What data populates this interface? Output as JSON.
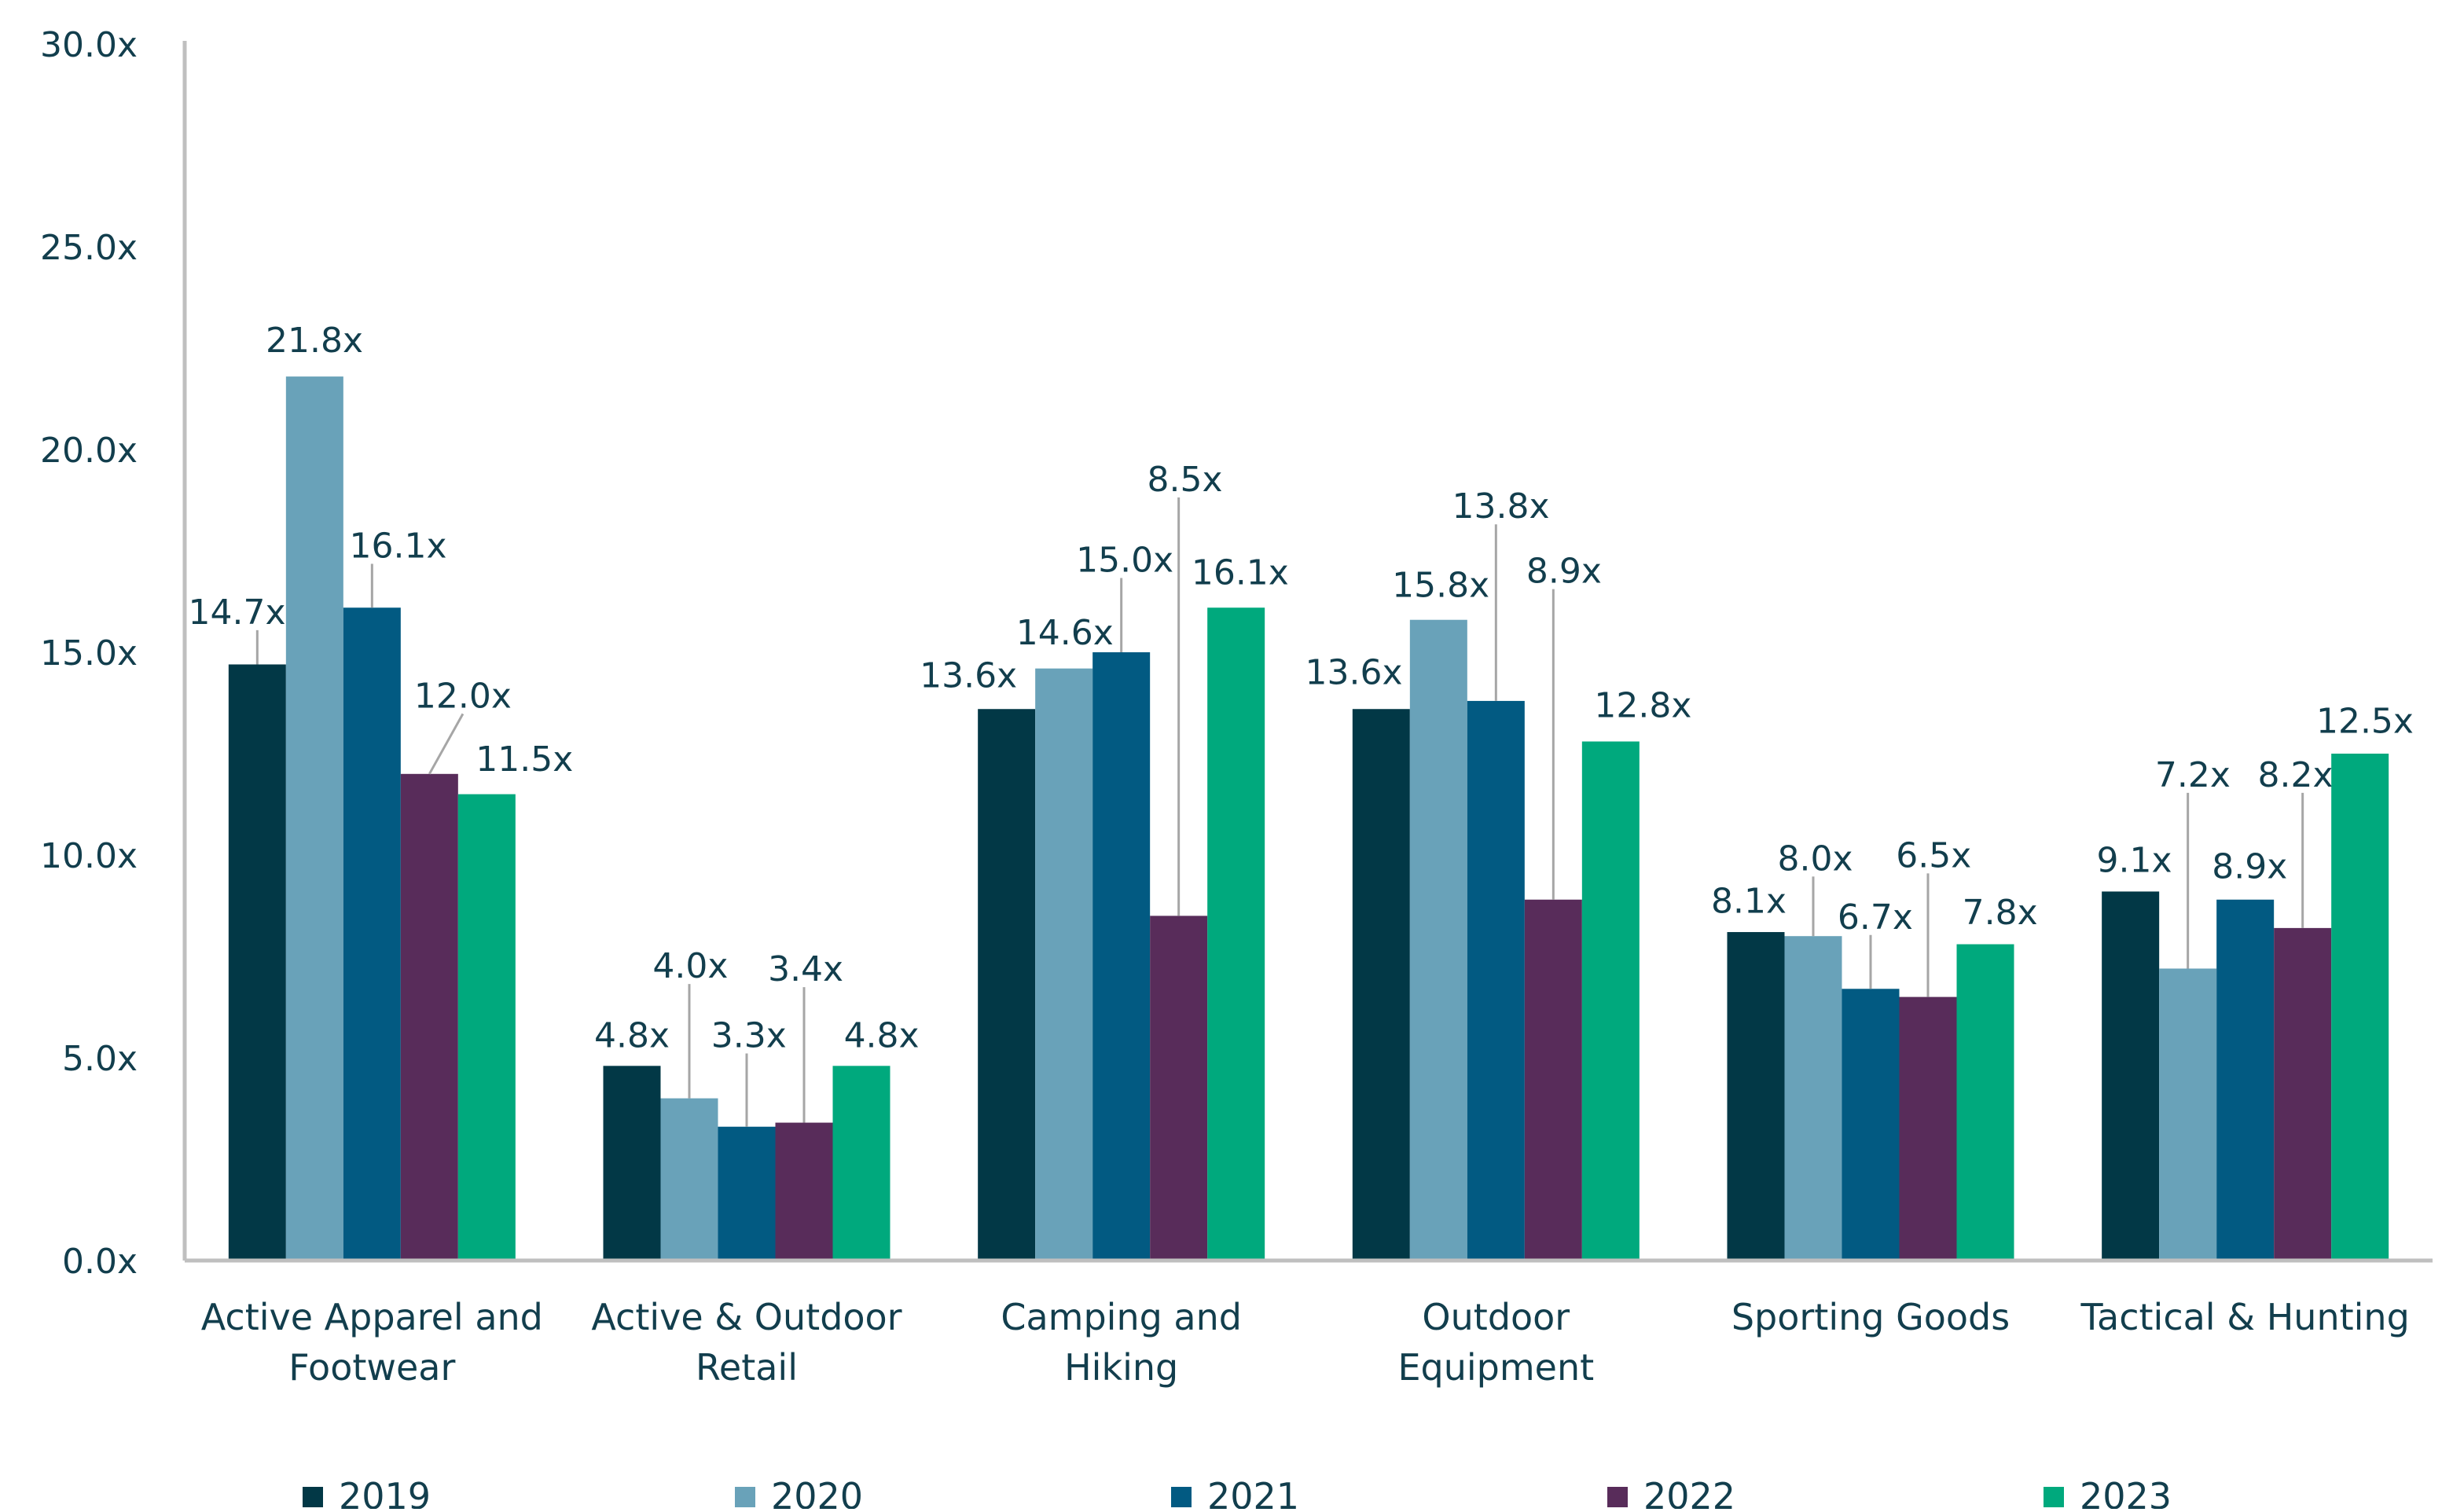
{
  "chart_data": {
    "type": "bar",
    "title": "",
    "xlabel": "",
    "ylabel": "",
    "ylim": [
      0,
      30
    ],
    "yticks": [
      "0.0x",
      "5.0x",
      "10.0x",
      "15.0x",
      "20.0x",
      "25.0x",
      "30.0x"
    ],
    "grid": false,
    "legend_position": "bottom",
    "categories": [
      [
        "Active Apparel and",
        "Footwear"
      ],
      [
        "Active & Outdoor",
        "Retail"
      ],
      [
        "Camping and",
        "Hiking"
      ],
      [
        "Outdoor",
        "Equipment"
      ],
      [
        "Sporting Goods"
      ],
      [
        "Tactical & Hunting"
      ]
    ],
    "series": [
      {
        "name": "2019",
        "color": "#023846",
        "values": [
          14.7,
          4.8,
          13.6,
          13.6,
          8.1,
          9.1
        ]
      },
      {
        "name": "2020",
        "color": "#69a2b9",
        "values": [
          21.8,
          4.0,
          14.6,
          15.8,
          8.0,
          7.2
        ]
      },
      {
        "name": "2021",
        "color": "#025a82",
        "values": [
          16.1,
          3.3,
          15.0,
          13.8,
          6.7,
          8.9
        ]
      },
      {
        "name": "2022",
        "color": "#582c5a",
        "values": [
          12.0,
          3.4,
          8.5,
          8.9,
          6.5,
          8.2
        ]
      },
      {
        "name": "2023",
        "color": "#00a97d",
        "values": [
          11.5,
          4.8,
          16.1,
          12.8,
          7.8,
          12.5
        ]
      }
    ],
    "label_suffix": "x"
  }
}
